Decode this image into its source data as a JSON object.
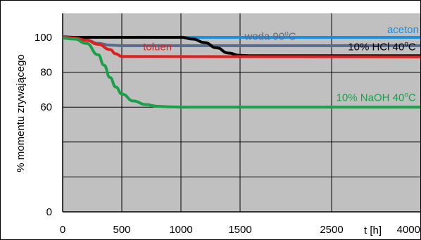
{
  "chart_data": {
    "type": "line",
    "title": "",
    "ylabel": "% momentu zrywającego",
    "xlabel": "t [h]",
    "ylim": [
      0,
      105
    ],
    "grid": true,
    "plot_background": "#c0c0c0",
    "x_ticks": [
      {
        "value": 0,
        "label": "0"
      },
      {
        "value": 500,
        "label": "500"
      },
      {
        "value": 1000,
        "label": "1000"
      },
      {
        "value": 1500,
        "label": "1500"
      },
      {
        "value": 2500,
        "label": "2500"
      },
      {
        "value": 4000,
        "label": "4000"
      }
    ],
    "y_ticks": [
      {
        "value": 0,
        "label": "0"
      },
      {
        "value": 20,
        "label": ""
      },
      {
        "value": 40,
        "label": ""
      },
      {
        "value": 60,
        "label": "60"
      },
      {
        "value": 80,
        "label": "80"
      },
      {
        "value": 100,
        "label": "100"
      }
    ],
    "series": [
      {
        "name": "aceton",
        "color": "#1c8fe0",
        "label_at": [
          4000,
          102.5
        ],
        "points": [
          [
            0,
            100
          ],
          [
            4000,
            100
          ]
        ]
      },
      {
        "name": "woda 90°C",
        "color": "#5a6a8c",
        "label_at": [
          1550,
          98.5
        ],
        "points": [
          [
            0,
            100.5
          ],
          [
            100,
            100
          ],
          [
            200,
            98.5
          ],
          [
            300,
            96.5
          ],
          [
            400,
            95.5
          ],
          [
            500,
            95.2
          ],
          [
            4000,
            95.2
          ]
        ]
      },
      {
        "name": "10% HCl 40°C",
        "color": "#000000",
        "label_at": [
          3950,
          92.5
        ],
        "points": [
          [
            0,
            100
          ],
          [
            1000,
            100
          ],
          [
            1100,
            99
          ],
          [
            1200,
            97
          ],
          [
            1300,
            94
          ],
          [
            1400,
            91
          ],
          [
            1500,
            89.6
          ],
          [
            1600,
            89.4
          ],
          [
            4000,
            89.4
          ]
        ]
      },
      {
        "name": "toluen",
        "color": "#e02020",
        "label_at": [
          680,
          92.5
        ],
        "points": [
          [
            0,
            100.2
          ],
          [
            100,
            99.6
          ],
          [
            200,
            98.3
          ],
          [
            300,
            96
          ],
          [
            400,
            93
          ],
          [
            450,
            90.5
          ],
          [
            500,
            89
          ],
          [
            4000,
            88.8
          ]
        ]
      },
      {
        "name": "10% NaOH 40°C",
        "color": "#1aa04a",
        "label_at": [
          3950,
          63.5
        ],
        "points": [
          [
            0,
            99.5
          ],
          [
            100,
            99
          ],
          [
            200,
            96.5
          ],
          [
            300,
            90
          ],
          [
            350,
            84
          ],
          [
            400,
            77
          ],
          [
            450,
            71.5
          ],
          [
            500,
            67.5
          ],
          [
            600,
            63.5
          ],
          [
            700,
            61.5
          ],
          [
            800,
            60.5
          ],
          [
            900,
            60.2
          ],
          [
            1000,
            60
          ],
          [
            4000,
            60
          ]
        ]
      }
    ]
  }
}
